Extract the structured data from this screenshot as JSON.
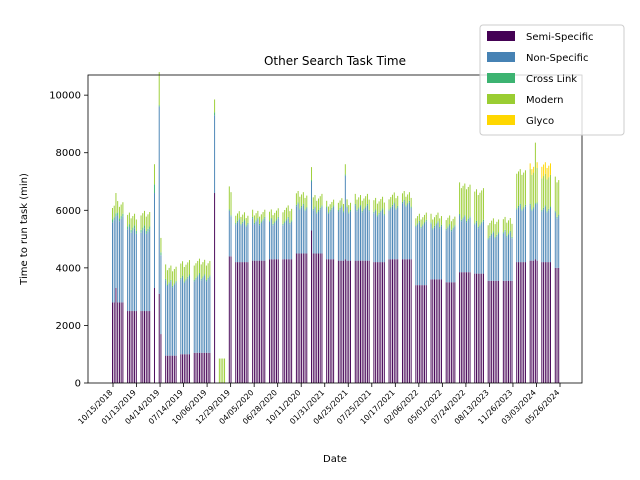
{
  "chart_data": {
    "type": "bar",
    "stacked": true,
    "title": "Other Search Task Time",
    "xlabel": "Date",
    "ylabel": "Time to run task (min)",
    "ylim": [
      0,
      10700
    ],
    "yticks": [
      0,
      2000,
      4000,
      6000,
      8000,
      10000
    ],
    "xtick_labels": [
      "10/15/2018",
      "01/13/2019",
      "04/14/2019",
      "07/14/2019",
      "10/06/2019",
      "12/29/2019",
      "04/05/2020",
      "06/28/2020",
      "10/11/2020",
      "01/31/2021",
      "04/25/2021",
      "07/25/2021",
      "10/17/2021",
      "02/06/2022",
      "05/01/2022",
      "07/24/2022",
      "08/13/2023",
      "11/26/2023",
      "03/03/2024",
      "05/26/2024"
    ],
    "legend_position": "upper-right",
    "grid": false,
    "series": [
      {
        "name": "Semi-Specific",
        "color": "#440154"
      },
      {
        "name": "Non-Specific",
        "color": "#4682b4"
      },
      {
        "name": "Cross Link",
        "color": "#3cb371"
      },
      {
        "name": "Modern",
        "color": "#9acd32"
      },
      {
        "name": "Glyco",
        "color": "#ffd700"
      }
    ],
    "groups": [
      {
        "semi": 2800,
        "non": 2900,
        "cross": 100,
        "modern": 400,
        "glyco": 0,
        "n": 7
      },
      {
        "semi": 2500,
        "non": 2800,
        "cross": 100,
        "modern": 400,
        "glyco": 0,
        "n": 6
      },
      {
        "semi": 2500,
        "non": 2800,
        "cross": 100,
        "modern": 500,
        "glyco": 0,
        "n": 6
      },
      {
        "semi": 3000,
        "non": 3600,
        "cross": 300,
        "modern": 400,
        "glyco": 0,
        "n": 1
      },
      {
        "semi": 1700,
        "non": 2700,
        "cross": 100,
        "modern": 500,
        "glyco": 0,
        "n": 2
      },
      {
        "semi": 950,
        "non": 2500,
        "cross": 50,
        "modern": 500,
        "glyco": 0,
        "n": 7
      },
      {
        "semi": 1000,
        "non": 2600,
        "cross": 50,
        "modern": 500,
        "glyco": 0,
        "n": 6
      },
      {
        "semi": 1050,
        "non": 2600,
        "cross": 50,
        "modern": 500,
        "glyco": 0,
        "n": 10
      },
      {
        "semi": 6600,
        "non": 2700,
        "cross": 100,
        "modern": 400,
        "glyco": 0,
        "n": 1
      },
      {
        "semi": 0,
        "non": 0,
        "cross": 0,
        "modern": 850,
        "glyco": 0,
        "n": 4
      },
      {
        "semi": 4400,
        "non": 1500,
        "cross": 50,
        "modern": 800,
        "glyco": 0,
        "n": 2
      },
      {
        "semi": 4200,
        "non": 1350,
        "cross": 50,
        "modern": 250,
        "glyco": 0,
        "n": 8
      },
      {
        "semi": 4250,
        "non": 1350,
        "cross": 50,
        "modern": 250,
        "glyco": 0,
        "n": 8
      },
      {
        "semi": 4300,
        "non": 1300,
        "cross": 50,
        "modern": 300,
        "glyco": 0,
        "n": 6
      },
      {
        "semi": 4300,
        "non": 1300,
        "cross": 50,
        "modern": 400,
        "glyco": 0,
        "n": 6
      },
      {
        "semi": 4500,
        "non": 1600,
        "cross": 50,
        "modern": 400,
        "glyco": 0,
        "n": 7
      },
      {
        "semi": 4500,
        "non": 1500,
        "cross": 50,
        "modern": 400,
        "glyco": 0,
        "n": 7
      },
      {
        "semi": 4300,
        "non": 1700,
        "cross": 50,
        "modern": 200,
        "glyco": 0,
        "n": 5
      },
      {
        "semi": 4250,
        "non": 1750,
        "cross": 50,
        "modern": 250,
        "glyco": 0,
        "n": 8
      },
      {
        "semi": 4250,
        "non": 1800,
        "cross": 50,
        "modern": 350,
        "glyco": 0,
        "n": 9
      },
      {
        "semi": 4200,
        "non": 1700,
        "cross": 50,
        "modern": 400,
        "glyco": 0,
        "n": 7
      },
      {
        "semi": 4300,
        "non": 1800,
        "cross": 50,
        "modern": 350,
        "glyco": 0,
        "n": 6
      },
      {
        "semi": 4300,
        "non": 1900,
        "cross": 50,
        "modern": 300,
        "glyco": 0,
        "n": 6
      },
      {
        "semi": 3400,
        "non": 2100,
        "cross": 50,
        "modern": 250,
        "glyco": 0,
        "n": 7
      },
      {
        "semi": 3600,
        "non": 1850,
        "cross": 50,
        "modern": 300,
        "glyco": 0,
        "n": 7
      },
      {
        "semi": 3500,
        "non": 1850,
        "cross": 50,
        "modern": 300,
        "glyco": 0,
        "n": 6
      },
      {
        "semi": 3850,
        "non": 1850,
        "cross": 50,
        "modern": 1100,
        "glyco": 0,
        "n": 7
      },
      {
        "semi": 3800,
        "non": 1700,
        "cross": 50,
        "modern": 1100,
        "glyco": 0,
        "n": 6
      },
      {
        "semi": 3550,
        "non": 1550,
        "cross": 50,
        "modern": 450,
        "glyco": 0,
        "n": 7
      },
      {
        "semi": 3550,
        "non": 1600,
        "cross": 50,
        "modern": 450,
        "glyco": 0,
        "n": 6
      },
      {
        "semi": 4200,
        "non": 1900,
        "cross": 50,
        "modern": 1200,
        "glyco": 0,
        "n": 6
      },
      {
        "semi": 4250,
        "non": 1850,
        "cross": 50,
        "modern": 1200,
        "glyco": 200,
        "n": 5
      },
      {
        "semi": 4200,
        "non": 1800,
        "cross": 50,
        "modern": 1100,
        "glyco": 400,
        "n": 6
      },
      {
        "semi": 4000,
        "non": 1800,
        "cross": 50,
        "modern": 1200,
        "glyco": 0,
        "n": 3
      }
    ],
    "spikes": [
      {
        "group": 0,
        "index": 2,
        "semi": 3300,
        "non": 2500,
        "cross": 100,
        "modern": 700,
        "glyco": 0
      },
      {
        "group": 3,
        "index": 0,
        "semi": 3300,
        "non": 3300,
        "cross": 300,
        "modern": 700,
        "glyco": 0
      },
      {
        "group": 4,
        "index": 0,
        "semi": 3100,
        "non": 6500,
        "cross": 50,
        "modern": 1150,
        "glyco": 0
      },
      {
        "group": 8,
        "index": 0,
        "semi": 6600,
        "non": 2700,
        "cross": 100,
        "modern": 450,
        "glyco": 0
      },
      {
        "group": 16,
        "index": 0,
        "semi": 5300,
        "non": 1700,
        "cross": 50,
        "modern": 450,
        "glyco": 0
      },
      {
        "group": 18,
        "index": 4,
        "semi": 4300,
        "non": 2900,
        "cross": 50,
        "modern": 350,
        "glyco": 0
      },
      {
        "group": 31,
        "index": 3,
        "semi": 4300,
        "non": 1900,
        "cross": 50,
        "modern": 2100,
        "glyco": 0
      }
    ]
  }
}
